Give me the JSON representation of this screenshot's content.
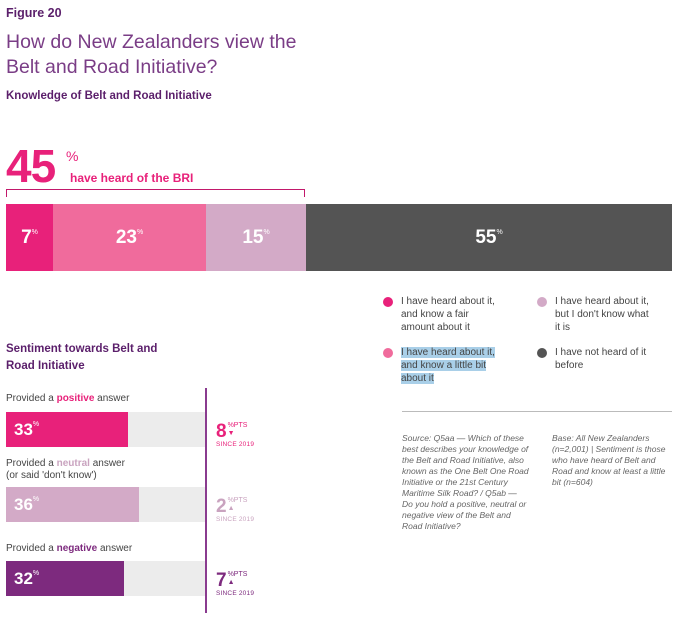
{
  "figure_label": "Figure 20",
  "title": "How do New Zealanders view the Belt and Road Initiative?",
  "subtitle": "Knowledge of Belt and Road Initiative",
  "headline": {
    "value": "45",
    "unit": "%",
    "caption": "have heard of the BRI"
  },
  "chart_data": [
    {
      "type": "bar",
      "orientation": "horizontal-stacked",
      "title": "Knowledge of Belt and Road Initiative",
      "unit": "%",
      "categories": [
        "I have heard about it, and know a fair amount about it",
        "I have heard about it, and know a little bit about it",
        "I have heard about it, but I don't know what it is",
        "I have not heard of it before"
      ],
      "values": [
        7,
        23,
        15,
        55
      ],
      "colors": [
        "#e8217a",
        "#f06b9c",
        "#d3aac7",
        "#545454"
      ]
    },
    {
      "type": "bar",
      "orientation": "horizontal",
      "title": "Sentiment towards Belt and Road Initiative",
      "unit": "%",
      "categories": [
        "positive",
        "neutral",
        "negative"
      ],
      "values": [
        33,
        36,
        32
      ],
      "colors": [
        "#e8217a",
        "#d3aac7",
        "#7d2a7e"
      ],
      "changes_since_2019": [
        {
          "value": 8,
          "direction": "down",
          "unit": "%PTS",
          "label": "SINCE 2019"
        },
        {
          "value": 2,
          "direction": "up",
          "unit": "%PTS",
          "label": "SINCE 2019"
        },
        {
          "value": 7,
          "direction": "up",
          "unit": "%PTS",
          "label": "SINCE 2019"
        }
      ]
    }
  ],
  "legend": [
    {
      "label": "I have heard about it, and know a fair amount about it",
      "color": "#e8217a"
    },
    {
      "label": "I have heard about it, but I don't know what it is",
      "color": "#d3aac7"
    },
    {
      "label": "I have heard about it, and know a little bit about it",
      "color": "#f06b9c"
    },
    {
      "label": "I have not heard of it before",
      "color": "#545454"
    }
  ],
  "sentiment": {
    "title": "Sentiment towards Belt and Road Initiative",
    "rows": [
      {
        "prefix": "Provided a",
        "keyword": "positive",
        "suffix": "answer",
        "extra": "",
        "keyword_color": "#e8217a",
        "change_color": "#e8217a"
      },
      {
        "prefix": "Provided a",
        "keyword": "neutral",
        "suffix": "answer",
        "extra": "(or said 'don't know')",
        "keyword_color": "#c9a3bf",
        "change_color": "#c9a3bf"
      },
      {
        "prefix": "Provided a",
        "keyword": "negative",
        "suffix": "answer",
        "extra": "",
        "keyword_color": "#7d2a7e",
        "change_color": "#7d2a7e"
      }
    ]
  },
  "notes": {
    "source": "Source: Q5aa — Which of these best describes your knowledge of the Belt and Road Initiative, also known as the One Belt One Road Initiative or the 21st Century Maritime Silk Road? / Q5ab — Do you hold a positive, neutral or negative view of the Belt and Road Initiative?",
    "base": "Base: All New Zealanders (n=2,001) | Sentiment is those who have heard of Belt and Road and know at least a little bit (n=604)"
  }
}
